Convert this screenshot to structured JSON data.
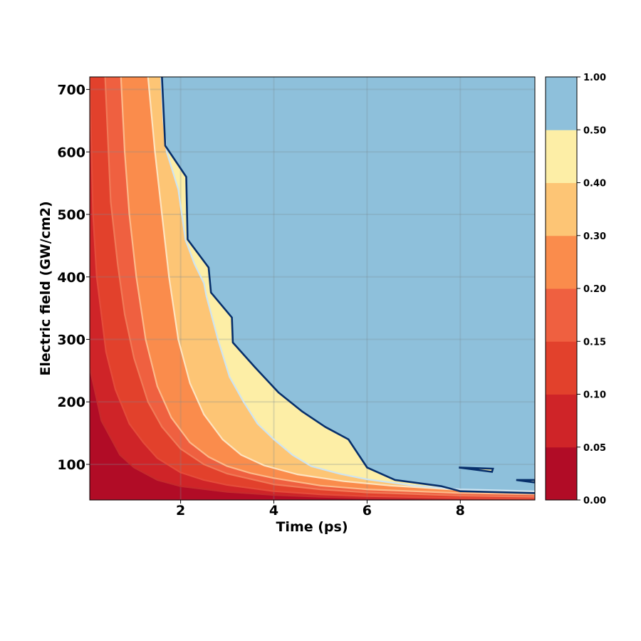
{
  "chart_data": {
    "type": "contour",
    "xlabel": "Time (ps)",
    "ylabel": "Electric field (GW/cm2)",
    "xlim": [
      0.05,
      9.6
    ],
    "ylim": [
      43,
      720
    ],
    "xticks": [
      2,
      4,
      6,
      8
    ],
    "yticks": [
      100,
      200,
      300,
      400,
      500,
      600,
      700
    ],
    "grid": true,
    "colorbar": {
      "levels": [
        0.0,
        0.05,
        0.1,
        0.15,
        0.2,
        0.3,
        0.4,
        0.5,
        1.0
      ],
      "tick_labels": [
        "0.00",
        "0.05",
        "0.10",
        "0.15",
        "0.20",
        "0.30",
        "0.40",
        "0.50",
        "1.00"
      ],
      "colors": [
        "#b10c26",
        "#cf2428",
        "#e2412c",
        "#ef6040",
        "#fa8c4c",
        "#fdc575",
        "#fdeea6",
        "#8ec0db"
      ]
    },
    "contours": [
      {
        "level": 0.05,
        "line_color": "#c62a2c",
        "points": [
          [
            0.05,
            255
          ],
          [
            0.3,
            170
          ],
          [
            0.7,
            115
          ],
          [
            1.0,
            95
          ],
          [
            1.5,
            75
          ],
          [
            2.0,
            65
          ],
          [
            3.0,
            56
          ],
          [
            4.0,
            51
          ],
          [
            5.0,
            48
          ],
          [
            6.0,
            46
          ],
          [
            8.0,
            44.5
          ],
          [
            9.6,
            44
          ]
        ]
      },
      {
        "level": 0.1,
        "line_color": "#e44c3a",
        "points": [
          [
            0.05,
            720
          ],
          [
            0.12,
            500
          ],
          [
            0.2,
            400
          ],
          [
            0.4,
            280
          ],
          [
            0.6,
            220
          ],
          [
            0.9,
            165
          ],
          [
            1.2,
            135
          ],
          [
            1.5,
            110
          ],
          [
            2.0,
            87
          ],
          [
            2.5,
            75
          ],
          [
            3.0,
            67
          ],
          [
            4.0,
            57
          ],
          [
            5.0,
            52
          ],
          [
            6.0,
            49
          ],
          [
            8.0,
            46
          ],
          [
            9.6,
            45
          ]
        ]
      },
      {
        "level": 0.15,
        "line_color": "#f07a58",
        "points": [
          [
            0.38,
            720
          ],
          [
            0.5,
            520
          ],
          [
            0.65,
            420
          ],
          [
            0.8,
            340
          ],
          [
            1.0,
            270
          ],
          [
            1.3,
            200
          ],
          [
            1.6,
            160
          ],
          [
            2.0,
            125
          ],
          [
            2.5,
            100
          ],
          [
            3.0,
            85
          ],
          [
            4.0,
            68
          ],
          [
            5.0,
            60
          ],
          [
            6.0,
            55
          ],
          [
            8.0,
            50
          ],
          [
            9.6,
            48
          ]
        ]
      },
      {
        "level": 0.2,
        "line_color": "#fcb98a",
        "points": [
          [
            0.72,
            720
          ],
          [
            0.8,
            600
          ],
          [
            0.9,
            500
          ],
          [
            1.05,
            400
          ],
          [
            1.25,
            300
          ],
          [
            1.5,
            225
          ],
          [
            1.8,
            175
          ],
          [
            2.2,
            135
          ],
          [
            2.6,
            112
          ],
          [
            3.0,
            97
          ],
          [
            3.5,
            86
          ],
          [
            4.0,
            78
          ],
          [
            5.0,
            66
          ],
          [
            6.0,
            60
          ],
          [
            8.0,
            54
          ],
          [
            9.6,
            52
          ]
        ]
      },
      {
        "level": 0.3,
        "line_color": "#fde4c0",
        "points": [
          [
            1.3,
            720
          ],
          [
            1.45,
            600
          ],
          [
            1.6,
            500
          ],
          [
            1.75,
            400
          ],
          [
            1.95,
            300
          ],
          [
            2.2,
            230
          ],
          [
            2.5,
            180
          ],
          [
            2.9,
            140
          ],
          [
            3.3,
            115
          ],
          [
            3.8,
            98
          ],
          [
            4.5,
            84
          ],
          [
            5.5,
            73
          ],
          [
            6.5,
            66
          ],
          [
            8.0,
            59
          ],
          [
            9.6,
            56
          ]
        ]
      },
      {
        "level": 0.4,
        "line_color": "#cde4f2",
        "points": [
          [
            1.58,
            720
          ],
          [
            1.63,
            650
          ],
          [
            1.7,
            600
          ],
          [
            1.95,
            540
          ],
          [
            2.1,
            460
          ],
          [
            2.3,
            420
          ],
          [
            2.5,
            390
          ],
          [
            2.55,
            370
          ],
          [
            2.8,
            300
          ],
          [
            3.05,
            240
          ],
          [
            3.35,
            200
          ],
          [
            3.65,
            165
          ],
          [
            4.0,
            140
          ],
          [
            4.4,
            115
          ],
          [
            4.8,
            97
          ],
          [
            5.4,
            85
          ],
          [
            6.0,
            76
          ],
          [
            7.0,
            66
          ],
          [
            8.0,
            60
          ],
          [
            9.6,
            57
          ]
        ]
      },
      {
        "level": 0.5,
        "line_color": "#072f6b",
        "points": [
          [
            1.6,
            720
          ],
          [
            1.67,
            610
          ],
          [
            2.12,
            560
          ],
          [
            2.15,
            460
          ],
          [
            2.6,
            415
          ],
          [
            2.65,
            375
          ],
          [
            3.1,
            335
          ],
          [
            3.12,
            295
          ],
          [
            3.6,
            255
          ],
          [
            4.1,
            215
          ],
          [
            4.6,
            185
          ],
          [
            5.1,
            160
          ],
          [
            5.6,
            140
          ],
          [
            6.0,
            95
          ],
          [
            6.6,
            75
          ],
          [
            7.6,
            65
          ],
          [
            8.0,
            57
          ],
          [
            9.6,
            54
          ]
        ]
      }
    ],
    "islands_0_50": [
      {
        "points": [
          [
            7.97,
            95
          ],
          [
            8.7,
            93
          ],
          [
            8.68,
            88
          ],
          [
            7.97,
            95
          ]
        ]
      },
      {
        "points": [
          [
            9.2,
            75
          ],
          [
            9.6,
            75
          ],
          [
            9.6,
            71
          ],
          [
            9.2,
            75
          ]
        ]
      }
    ]
  }
}
